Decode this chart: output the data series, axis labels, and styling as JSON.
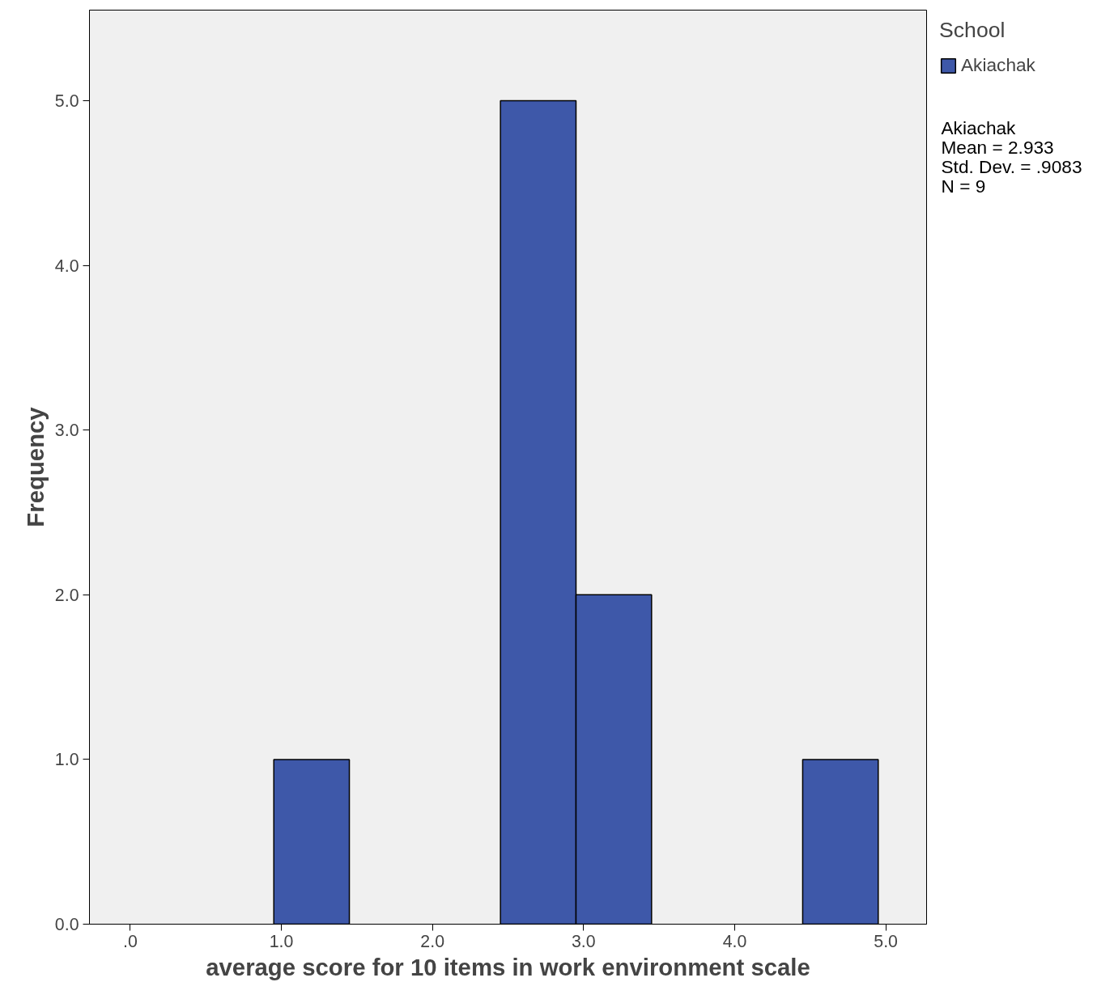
{
  "chart_data": {
    "type": "histogram",
    "xlabel": "average score for 10 items in work environment scale",
    "ylabel": "Frequency",
    "legend_title": "School",
    "bins": [
      0.95,
      1.45,
      1.95,
      2.45,
      2.95,
      3.45,
      3.95,
      4.45,
      4.95
    ],
    "series": [
      {
        "name": "Akiachak",
        "color": "#3e58a9",
        "values": [
          1,
          0,
          0,
          5,
          2,
          0,
          0,
          1
        ]
      }
    ],
    "xlim": [
      -0.27,
      5.27
    ],
    "ylim": [
      0,
      5.55
    ],
    "xticks": [
      {
        "value": 0,
        "label": ".0"
      },
      {
        "value": 1,
        "label": "1.0"
      },
      {
        "value": 2,
        "label": "2.0"
      },
      {
        "value": 3,
        "label": "3.0"
      },
      {
        "value": 4,
        "label": "4.0"
      },
      {
        "value": 5,
        "label": "5.0"
      }
    ],
    "yticks": [
      {
        "value": 0,
        "label": "0.0"
      },
      {
        "value": 1,
        "label": "1.0"
      },
      {
        "value": 2,
        "label": "2.0"
      },
      {
        "value": 3,
        "label": "3.0"
      },
      {
        "value": 4,
        "label": "4.0"
      },
      {
        "value": 5,
        "label": "5.0"
      }
    ],
    "annotations": [
      "Akiachak",
      "Mean = 2.933",
      "Std. Dev. = .9083",
      "N = 9"
    ],
    "grid": false,
    "legend": "top right"
  }
}
